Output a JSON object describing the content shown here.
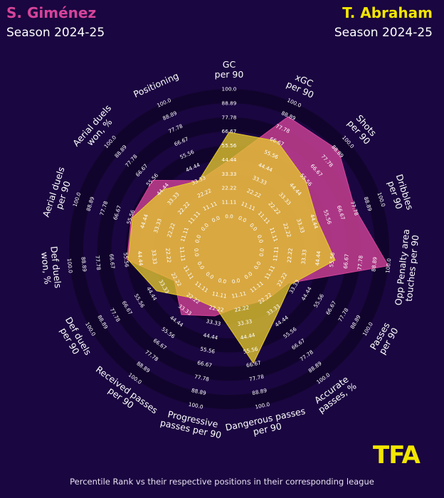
{
  "header": {
    "left": {
      "player": "S. Giménez",
      "season": "Season 2024-25",
      "color": "#d6449a"
    },
    "right": {
      "player": "T. Abraham",
      "season": "Season 2024-25",
      "color": "#f2e600"
    }
  },
  "footnote": "Percentile Rank vs their respective positions in their corresponding league",
  "logo": {
    "text": "TFA",
    "color": "#f2e600"
  },
  "chart_data": {
    "type": "radar",
    "range": [
      0,
      100
    ],
    "rings": [
      "0.0",
      "11.11",
      "22.22",
      "33.33",
      "44.44",
      "55.56",
      "66.67",
      "77.78",
      "88.89",
      "100.0"
    ],
    "metrics": [
      "GC\nper 90",
      "xGC\nper 90",
      "Shots\nper 90",
      "Dribbles\nper 90",
      "Opp Penalty area\ntouches per 90",
      "Passes\nper 90",
      "Accurate\npasses, %",
      "Dangerous passes\nper 90",
      "Progressive\npasses per 90",
      "Received passes\nper 90",
      "Def duels\nper 90",
      "Def duels\nwon, %",
      "Aerial duels\nper 90",
      "Aerial duels\nwon, %",
      "Positioning"
    ],
    "series": [
      {
        "name": "S. Giménez",
        "color": "#d6449a",
        "values": [
          44,
          88,
          90,
          78,
          100,
          28,
          24,
          20,
          28,
          38,
          24,
          55,
          55,
          55,
          33
        ]
      },
      {
        "name": "T. Abraham",
        "color": "#e6c82e",
        "values": [
          66,
          67,
          55,
          47,
          58,
          30,
          38,
          66,
          22,
          22,
          40,
          54,
          54,
          44,
          33
        ]
      }
    ]
  }
}
